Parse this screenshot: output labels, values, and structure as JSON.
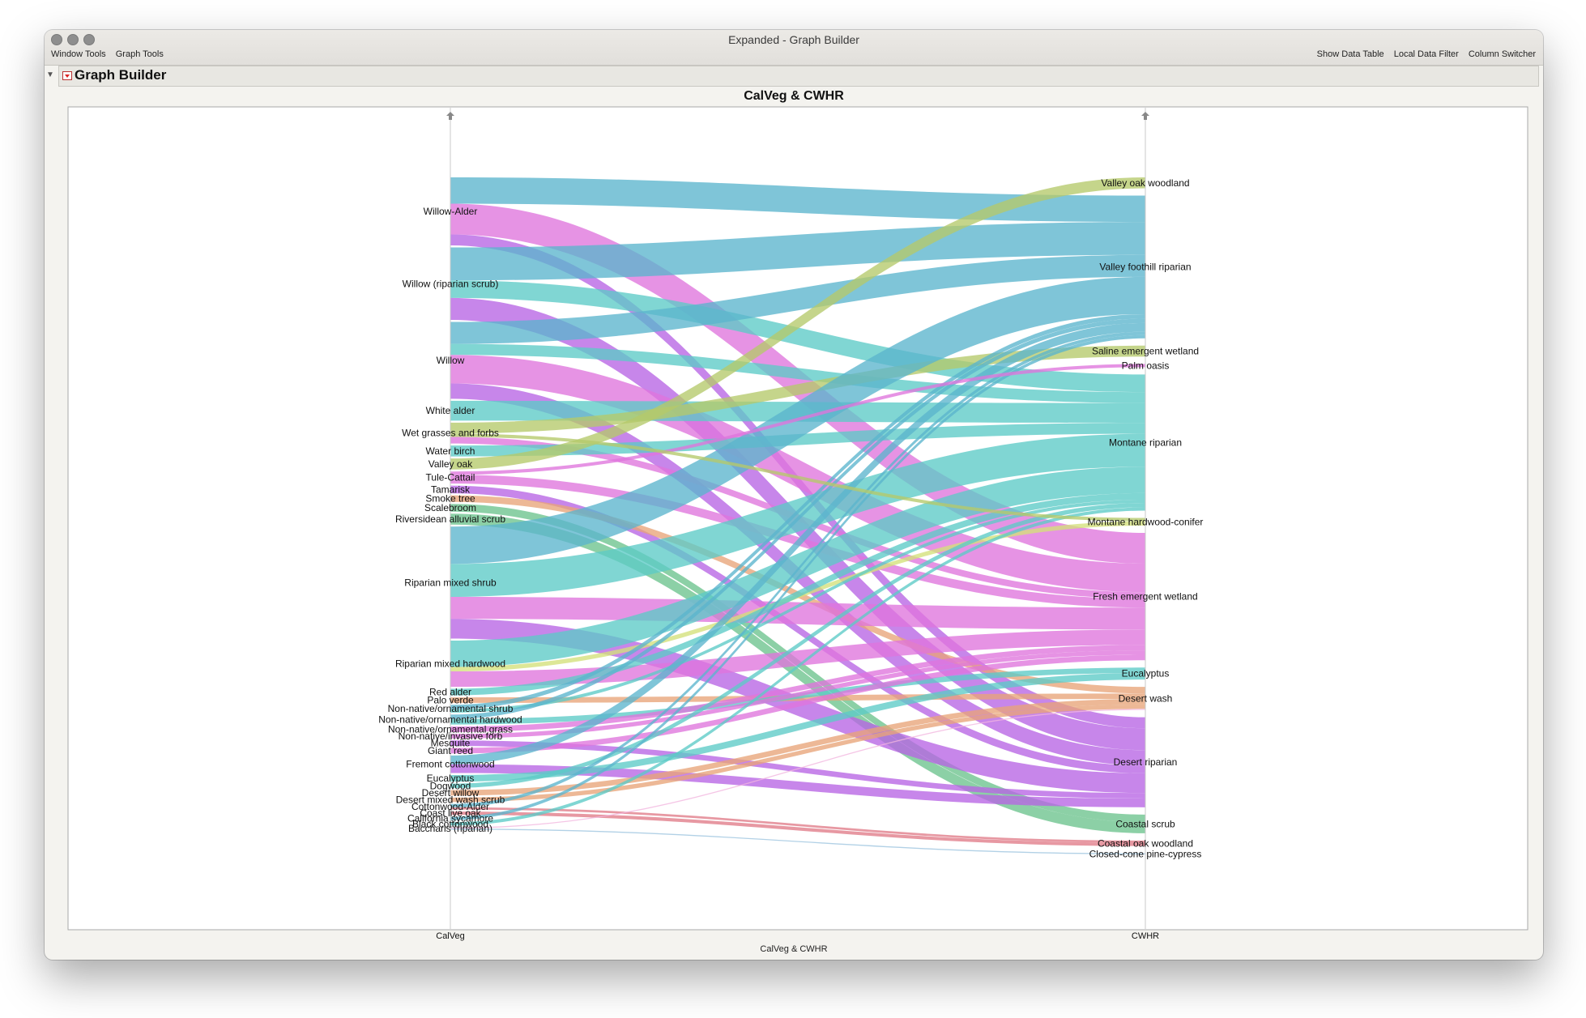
{
  "window": {
    "title": "Expanded - Graph Builder",
    "menu_left": [
      "Window Tools",
      "Graph Tools"
    ],
    "menu_right": [
      "Show Data Table",
      "Local Data Filter",
      "Column Switcher"
    ]
  },
  "platform": {
    "title": "Graph Builder"
  },
  "colors": {
    "teal_blue": "#5bb5cd",
    "pink": "#df74dd",
    "teal": "#5ccac6",
    "olive": "#b5c96a",
    "purple": "#b764e4",
    "green": "#6cc38d",
    "salmon": "#e8a478",
    "red": "#e07b88",
    "pale_pink": "#f2b6df",
    "light_blue": "#9cc4df",
    "yellow_green": "#d4e07a"
  },
  "chart_data": {
    "type": "alluvial",
    "title": "CalVeg & CWHR",
    "xlabel": "CalVeg & CWHR",
    "axes": [
      "CalVeg",
      "CWHR"
    ],
    "left_nodes": [
      {
        "name": "Willow-Alder",
        "flows": [
          {
            "to": "Valley foothill riparian",
            "w": 24,
            "c": "teal_blue"
          },
          {
            "to": "Fresh emergent wetland",
            "w": 28,
            "c": "pink"
          },
          {
            "to": "Desert riparian",
            "w": 10,
            "c": "purple"
          }
        ]
      },
      {
        "name": "Willow (riparian scrub)",
        "flows": [
          {
            "to": "Valley foothill riparian",
            "w": 30,
            "c": "teal_blue"
          },
          {
            "to": "Montane riparian",
            "w": 16,
            "c": "teal"
          },
          {
            "to": "Desert riparian",
            "w": 20,
            "c": "purple"
          }
        ]
      },
      {
        "name": "Willow",
        "flows": [
          {
            "to": "Valley foothill riparian",
            "w": 20,
            "c": "teal_blue"
          },
          {
            "to": "Montane riparian",
            "w": 10,
            "c": "teal"
          },
          {
            "to": "Fresh emergent wetland",
            "w": 26,
            "c": "pink"
          },
          {
            "to": "Desert riparian",
            "w": 14,
            "c": "purple"
          }
        ]
      },
      {
        "name": "White alder",
        "flows": [
          {
            "to": "Montane riparian",
            "w": 18,
            "c": "teal"
          }
        ]
      },
      {
        "name": "Wet grasses and forbs",
        "flows": [
          {
            "to": "Saline emergent wetland",
            "w": 10,
            "c": "olive"
          },
          {
            "to": "Fresh emergent wetland",
            "w": 6,
            "c": "pink"
          }
        ]
      },
      {
        "name": "Water birch",
        "flows": [
          {
            "to": "Montane riparian",
            "w": 10,
            "c": "teal"
          }
        ]
      },
      {
        "name": "Valley oak",
        "flows": [
          {
            "to": "Valley oak woodland",
            "w": 10,
            "c": "olive"
          }
        ]
      },
      {
        "name": "Tule-Cattail",
        "flows": [
          {
            "to": "Fresh emergent wetland",
            "w": 8,
            "c": "pink"
          }
        ]
      },
      {
        "name": "Tamarisk",
        "flows": [
          {
            "to": "Desert riparian",
            "w": 7,
            "c": "purple"
          }
        ]
      },
      {
        "name": "Smoke tree",
        "flows": [
          {
            "to": "Desert wash",
            "w": 6,
            "c": "salmon"
          }
        ]
      },
      {
        "name": "Scalebroom",
        "flows": [
          {
            "to": "Coastal scrub",
            "w": 7,
            "c": "green"
          }
        ]
      },
      {
        "name": "Riversidean alluvial scrub",
        "flows": [
          {
            "to": "Coastal scrub",
            "w": 10,
            "c": "green"
          }
        ]
      },
      {
        "name": "Riparian mixed shrub",
        "flows": [
          {
            "to": "Valley foothill riparian",
            "w": 34,
            "c": "teal_blue"
          },
          {
            "to": "Montane riparian",
            "w": 30,
            "c": "teal"
          },
          {
            "to": "Fresh emergent wetland",
            "w": 20,
            "c": "pink"
          },
          {
            "to": "Desert riparian",
            "w": 18,
            "c": "purple"
          }
        ]
      },
      {
        "name": "Riparian mixed hardwood",
        "flows": [
          {
            "to": "Montane riparian",
            "w": 24,
            "c": "teal"
          },
          {
            "to": "Fresh emergent wetland",
            "w": 14,
            "c": "pink"
          },
          {
            "to": "Montane hardwood-conifer",
            "w": 4,
            "c": "yellow_green"
          }
        ]
      },
      {
        "name": "Red alder",
        "flows": [
          {
            "to": "Montane riparian",
            "w": 6,
            "c": "teal"
          }
        ]
      },
      {
        "name": "Palo verde",
        "flows": [
          {
            "to": "Desert wash",
            "w": 5,
            "c": "salmon"
          }
        ]
      },
      {
        "name": "Non-native/ornamental shrub",
        "flows": [
          {
            "to": "Valley foothill riparian",
            "w": 4,
            "c": "teal_blue"
          },
          {
            "to": "Montane riparian",
            "w": 3,
            "c": "teal"
          }
        ]
      },
      {
        "name": "Non-native/ornamental hardwood",
        "flows": [
          {
            "to": "Eucalyptus",
            "w": 5,
            "c": "teal"
          },
          {
            "to": "Valley foothill riparian",
            "w": 4,
            "c": "teal_blue"
          }
        ]
      },
      {
        "name": "Non-native/ornamental grass",
        "flows": [
          {
            "to": "Fresh emergent wetland",
            "w": 5,
            "c": "pink"
          }
        ]
      },
      {
        "name": "Non-native/invasive forb",
        "flows": [
          {
            "to": "Fresh emergent wetland",
            "w": 4,
            "c": "pink"
          }
        ]
      },
      {
        "name": "Mesquite",
        "flows": [
          {
            "to": "Desert riparian",
            "w": 5,
            "c": "purple"
          }
        ]
      },
      {
        "name": "Giant reed",
        "flows": [
          {
            "to": "Fresh emergent wetland",
            "w": 5,
            "c": "pink"
          }
        ]
      },
      {
        "name": "Fremont cottonwood",
        "flows": [
          {
            "to": "Valley foothill riparian",
            "w": 8,
            "c": "teal_blue"
          },
          {
            "to": "Desert riparian",
            "w": 8,
            "c": "purple"
          }
        ]
      },
      {
        "name": "Eucalyptus",
        "flows": [
          {
            "to": "Eucalyptus",
            "w": 6,
            "c": "teal"
          }
        ]
      },
      {
        "name": "Dogwood",
        "flows": [
          {
            "to": "Montane riparian",
            "w": 4,
            "c": "teal"
          }
        ]
      },
      {
        "name": "Desert willow",
        "flows": [
          {
            "to": "Desert wash",
            "w": 5,
            "c": "salmon"
          }
        ]
      },
      {
        "name": "Desert mixed wash scrub",
        "flows": [
          {
            "to": "Desert wash",
            "w": 4,
            "c": "salmon"
          }
        ]
      },
      {
        "name": "Cottonwood-Alder",
        "flows": [
          {
            "to": "Valley foothill riparian",
            "w": 3,
            "c": "teal_blue"
          },
          {
            "to": "Coastal oak woodland",
            "w": 2,
            "c": "red"
          }
        ]
      },
      {
        "name": "Coast live oak",
        "flows": [
          {
            "to": "Coastal oak woodland",
            "w": 3,
            "c": "red"
          }
        ]
      },
      {
        "name": "California sycamore",
        "flows": [
          {
            "to": "Valley foothill riparian",
            "w": 3,
            "c": "teal_blue"
          }
        ]
      },
      {
        "name": "Black cottonwood",
        "flows": [
          {
            "to": "Montane riparian",
            "w": 3,
            "c": "teal"
          }
        ]
      },
      {
        "name": "Baccharis (riparian)",
        "flows": [
          {
            "to": "Desert wash",
            "w": 1,
            "c": "pale_pink"
          },
          {
            "to": "Closed-cone pine-cypress",
            "w": 1,
            "c": "light_blue"
          }
        ]
      }
    ],
    "right_nodes": [
      "Valley oak woodland",
      "Valley foothill riparian",
      "Saline emergent wetland",
      "Palm oasis",
      "Montane riparian",
      "Montane hardwood-conifer",
      "Fresh emergent wetland",
      "Eucalyptus",
      "Desert wash",
      "Desert riparian",
      "Coastal scrub",
      "Coastal oak woodland",
      "Closed-cone pine-cypress"
    ],
    "extra_flows": [
      {
        "from": "Tule-Cattail",
        "to": "Palm oasis",
        "w": 3,
        "c": "pink"
      },
      {
        "from": "Wet grasses and forbs",
        "to": "Montane hardwood-conifer",
        "w": 3,
        "c": "olive"
      }
    ]
  }
}
